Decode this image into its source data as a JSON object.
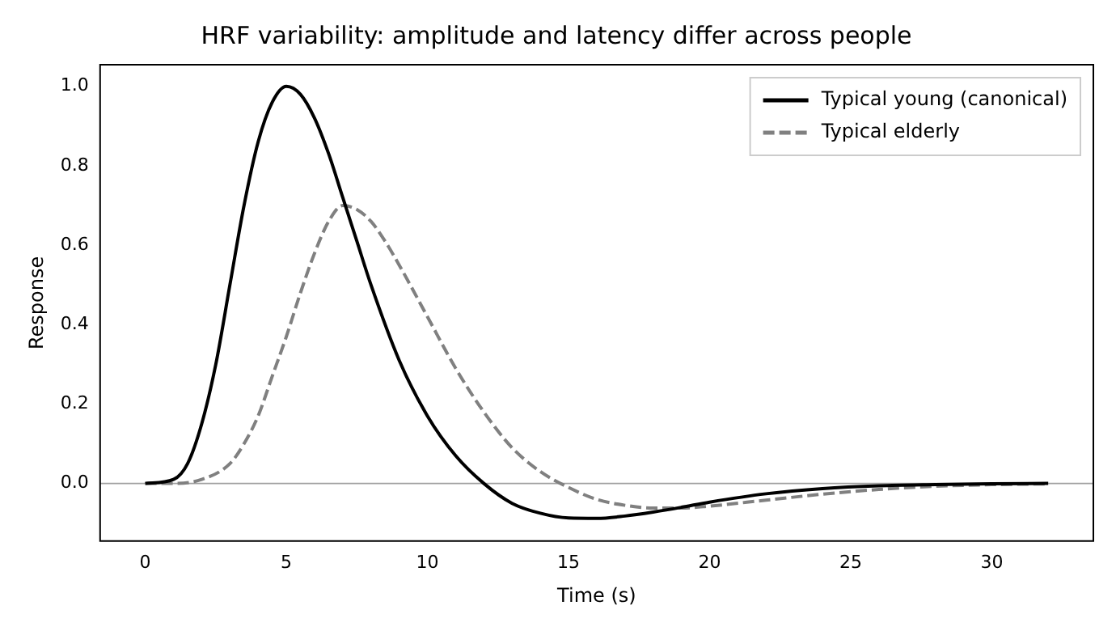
{
  "chart_data": {
    "type": "line",
    "title": "HRF variability: amplitude and latency differ across people",
    "xlabel": "Time (s)",
    "ylabel": "Response",
    "xlim": [
      -1.6,
      33.6
    ],
    "xticks": [
      0,
      5,
      10,
      15,
      20,
      25,
      30
    ],
    "ylim": [
      -0.145,
      1.0545
    ],
    "yticks": [
      {
        "value": 0,
        "label": "0.0"
      },
      0.2,
      0.4,
      0.6,
      0.8,
      {
        "value": 1,
        "label": "1.0"
      }
    ],
    "grid": false,
    "legend": "top right",
    "marker": "none",
    "ref_lines": [
      {
        "axis": "y",
        "value": 0,
        "color": "#a0a0a0"
      }
    ],
    "series": [
      {
        "name": "Typical young (canonical)",
        "color": "#000000",
        "line_style": "solid",
        "x": [
          0,
          1,
          1.5,
          2,
          2.5,
          3,
          3.5,
          4,
          4.5,
          5,
          5.5,
          6,
          6.5,
          7,
          7.5,
          8,
          9,
          10,
          11,
          12,
          13,
          14,
          15,
          16,
          17,
          18,
          19,
          20,
          22,
          24,
          26,
          28,
          30,
          32
        ],
        "values": [
          0,
          0.01,
          0.05,
          0.15,
          0.3,
          0.5,
          0.7,
          0.86,
          0.96,
          1.0,
          0.98,
          0.92,
          0.83,
          0.72,
          0.61,
          0.5,
          0.31,
          0.17,
          0.07,
          0.0,
          -0.05,
          -0.075,
          -0.087,
          -0.088,
          -0.082,
          -0.072,
          -0.06,
          -0.047,
          -0.026,
          -0.013,
          -0.006,
          -0.003,
          -0.001,
          0
        ]
      },
      {
        "name": "Typical elderly",
        "color": "#808080",
        "line_style": "dashed",
        "x": [
          0,
          1,
          2,
          3,
          3.5,
          4,
          4.5,
          5,
          5.5,
          6,
          6.5,
          7,
          7.5,
          8,
          8.5,
          9,
          10,
          11,
          12,
          13,
          14,
          15,
          16,
          17,
          18,
          19,
          20,
          22,
          24,
          26,
          28,
          30,
          32
        ],
        "values": [
          0,
          0,
          0.01,
          0.05,
          0.1,
          0.17,
          0.27,
          0.37,
          0.48,
          0.58,
          0.66,
          0.7,
          0.69,
          0.66,
          0.61,
          0.55,
          0.42,
          0.29,
          0.18,
          0.09,
          0.03,
          -0.01,
          -0.04,
          -0.055,
          -0.062,
          -0.062,
          -0.057,
          -0.042,
          -0.027,
          -0.015,
          -0.007,
          -0.003,
          -0.001
        ]
      }
    ]
  }
}
